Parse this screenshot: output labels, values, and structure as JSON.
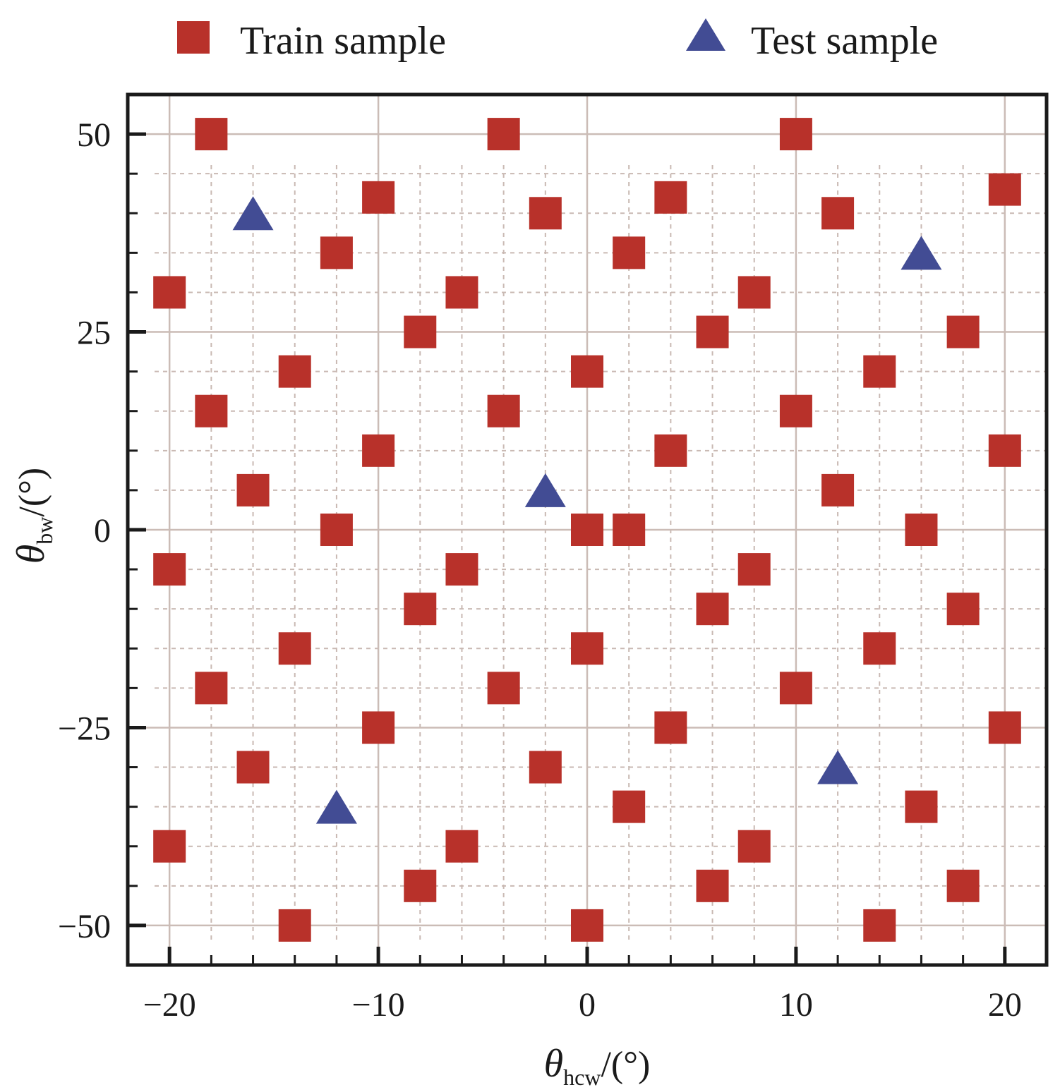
{
  "chart_data": {
    "type": "scatter",
    "xlabel": {
      "symbol": "θ",
      "subscript": "hcw",
      "unit": "/(°)"
    },
    "ylabel": {
      "symbol": "θ",
      "subscript": "bw",
      "unit": "/(°)"
    },
    "xlim": [
      -22,
      22
    ],
    "ylim": [
      -55,
      55
    ],
    "x_ticks": [
      -20,
      -10,
      0,
      10,
      20
    ],
    "x_tick_labels": [
      "−20",
      "−10",
      "0",
      "10",
      "20"
    ],
    "y_ticks": [
      -50,
      -25,
      0,
      25,
      50
    ],
    "y_tick_labels": [
      "−50",
      "−25",
      "0",
      "25",
      "50"
    ],
    "x_minor_ticks": [
      -18,
      -16,
      -14,
      -12,
      -8,
      -6,
      -4,
      -2,
      2,
      4,
      6,
      8,
      12,
      14,
      16,
      18
    ],
    "y_minor_ticks": [
      -45,
      -40,
      -35,
      -30,
      -20,
      -15,
      -10,
      -5,
      5,
      10,
      15,
      20,
      30,
      35,
      40,
      45
    ],
    "grid": true,
    "legend_position": "top",
    "series": [
      {
        "name": "Train sample",
        "marker": "square",
        "color": "#b8312a",
        "points": [
          [
            -18,
            50
          ],
          [
            -4,
            50
          ],
          [
            10,
            50
          ],
          [
            20,
            43
          ],
          [
            -10,
            42
          ],
          [
            4,
            42
          ],
          [
            -2,
            40
          ],
          [
            12,
            40
          ],
          [
            -12,
            35
          ],
          [
            2,
            35
          ],
          [
            -20,
            30
          ],
          [
            -6,
            30
          ],
          [
            8,
            30
          ],
          [
            -8,
            25
          ],
          [
            6,
            25
          ],
          [
            18,
            25
          ],
          [
            -14,
            20
          ],
          [
            0,
            20
          ],
          [
            14,
            20
          ],
          [
            -18,
            15
          ],
          [
            -4,
            15
          ],
          [
            10,
            15
          ],
          [
            -10,
            10
          ],
          [
            4,
            10
          ],
          [
            20,
            10
          ],
          [
            -16,
            5
          ],
          [
            12,
            5
          ],
          [
            -12,
            0
          ],
          [
            0,
            0
          ],
          [
            2,
            0
          ],
          [
            16,
            0
          ],
          [
            -20,
            -5
          ],
          [
            -6,
            -5
          ],
          [
            8,
            -5
          ],
          [
            -8,
            -10
          ],
          [
            6,
            -10
          ],
          [
            18,
            -10
          ],
          [
            -14,
            -15
          ],
          [
            0,
            -15
          ],
          [
            14,
            -15
          ],
          [
            -18,
            -20
          ],
          [
            -4,
            -20
          ],
          [
            10,
            -20
          ],
          [
            -10,
            -25
          ],
          [
            4,
            -25
          ],
          [
            20,
            -25
          ],
          [
            -16,
            -30
          ],
          [
            -2,
            -30
          ],
          [
            2,
            -35
          ],
          [
            16,
            -35
          ],
          [
            -20,
            -40
          ],
          [
            -6,
            -40
          ],
          [
            8,
            -40
          ],
          [
            -8,
            -45
          ],
          [
            6,
            -45
          ],
          [
            18,
            -45
          ],
          [
            -14,
            -50
          ],
          [
            0,
            -50
          ],
          [
            14,
            -50
          ]
        ]
      },
      {
        "name": "Test sample",
        "marker": "triangle",
        "color": "#424c94",
        "points": [
          [
            -16,
            40
          ],
          [
            16,
            35
          ],
          [
            -2,
            5
          ],
          [
            12,
            -30
          ],
          [
            -12,
            -35
          ]
        ]
      }
    ]
  }
}
